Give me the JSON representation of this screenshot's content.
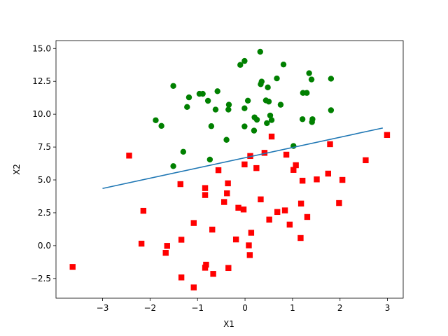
{
  "chart_data": {
    "type": "scatter",
    "title": "",
    "xlabel": "X1",
    "ylabel": "X2",
    "xlim": [
      -3.98,
      3.33
    ],
    "ylim": [
      -4.0,
      15.6
    ],
    "xticks": [
      -3,
      -2,
      -1,
      0,
      1,
      2,
      3
    ],
    "yticks": [
      -2.5,
      0.0,
      2.5,
      5.0,
      7.5,
      10.0,
      12.5,
      15.0
    ],
    "xtick_labels": [
      "−3",
      "−2",
      "−1",
      "0",
      "1",
      "2",
      "3"
    ],
    "ytick_labels": [
      "−2.5",
      "0.0",
      "2.5",
      "5.0",
      "7.5",
      "10.0",
      "12.5",
      "15.0"
    ],
    "grid": false,
    "series": [
      {
        "kind": "scatter",
        "marker": "circle",
        "color": "#008000",
        "points": [
          [
            -1.51,
            12.15
          ],
          [
            -0.96,
            11.55
          ],
          [
            -0.89,
            11.55
          ],
          [
            -0.58,
            11.75
          ],
          [
            -1.18,
            11.28
          ],
          [
            -0.78,
            11.02
          ],
          [
            -1.22,
            10.55
          ],
          [
            -0.34,
            10.72
          ],
          [
            -0.35,
            10.35
          ],
          [
            -0.62,
            10.35
          ],
          [
            -1.88,
            9.54
          ],
          [
            -1.76,
            9.11
          ],
          [
            -0.71,
            9.09
          ],
          [
            -0.39,
            8.05
          ],
          [
            -1.3,
            7.14
          ],
          [
            -0.74,
            6.55
          ],
          [
            -1.51,
            6.05
          ],
          [
            -0.1,
            13.75
          ],
          [
            -0.01,
            14.05
          ],
          [
            0.32,
            14.75
          ],
          [
            0.81,
            13.78
          ],
          [
            0.33,
            12.28
          ],
          [
            0.35,
            12.48
          ],
          [
            0.67,
            12.72
          ],
          [
            0.48,
            12.04
          ],
          [
            0.44,
            11.05
          ],
          [
            0.5,
            10.96
          ],
          [
            0.06,
            11.03
          ],
          [
            0.75,
            10.72
          ],
          [
            -0.01,
            10.45
          ],
          [
            0.53,
            9.9
          ],
          [
            0.25,
            9.58
          ],
          [
            0.2,
            9.76
          ],
          [
            0.56,
            9.55
          ],
          [
            0.46,
            9.32
          ],
          [
            0.19,
            8.75
          ],
          [
            -0.01,
            9.07
          ],
          [
            1.02,
            7.58
          ],
          [
            1.35,
            13.12
          ],
          [
            1.4,
            12.64
          ],
          [
            1.81,
            12.7
          ],
          [
            1.22,
            11.62
          ],
          [
            1.3,
            11.62
          ],
          [
            1.21,
            9.62
          ],
          [
            1.41,
            9.4
          ],
          [
            1.42,
            9.62
          ],
          [
            1.81,
            10.3
          ]
        ]
      },
      {
        "kind": "scatter",
        "marker": "square",
        "color": "#ff0000",
        "points": [
          [
            -3.63,
            -1.62
          ],
          [
            -2.44,
            6.85
          ],
          [
            -2.14,
            2.65
          ],
          [
            -2.18,
            0.15
          ],
          [
            -1.64,
            -0.02
          ],
          [
            -1.67,
            -0.55
          ],
          [
            -1.36,
            4.68
          ],
          [
            -1.34,
            0.45
          ],
          [
            -1.34,
            -2.42
          ],
          [
            -1.08,
            1.72
          ],
          [
            -1.08,
            -3.18
          ],
          [
            -0.84,
            4.38
          ],
          [
            -0.84,
            3.85
          ],
          [
            -0.82,
            -1.45
          ],
          [
            -0.84,
            -1.68
          ],
          [
            -0.69,
            1.22
          ],
          [
            -0.67,
            -2.15
          ],
          [
            -0.56,
            5.74
          ],
          [
            -0.44,
            3.32
          ],
          [
            -0.38,
            3.98
          ],
          [
            -0.36,
            4.74
          ],
          [
            -0.35,
            -1.7
          ],
          [
            -0.19,
            0.47
          ],
          [
            -0.14,
            2.88
          ],
          [
            -0.03,
            2.75
          ],
          [
            -0.01,
            6.18
          ],
          [
            0.08,
            0.02
          ],
          [
            0.1,
            -0.72
          ],
          [
            0.11,
            6.82
          ],
          [
            0.13,
            0.98
          ],
          [
            0.24,
            5.9
          ],
          [
            0.33,
            3.52
          ],
          [
            0.41,
            7.06
          ],
          [
            0.51,
            1.98
          ],
          [
            0.56,
            8.3
          ],
          [
            0.68,
            2.56
          ],
          [
            0.84,
            2.68
          ],
          [
            0.87,
            6.92
          ],
          [
            0.94,
            1.6
          ],
          [
            1.02,
            5.76
          ],
          [
            1.07,
            6.12
          ],
          [
            1.17,
            0.58
          ],
          [
            1.18,
            3.2
          ],
          [
            1.21,
            4.94
          ],
          [
            1.31,
            2.18
          ],
          [
            1.51,
            5.04
          ],
          [
            1.75,
            5.48
          ],
          [
            1.79,
            7.72
          ],
          [
            1.98,
            3.24
          ],
          [
            2.05,
            5.0
          ],
          [
            2.54,
            6.5
          ],
          [
            2.99,
            8.42
          ]
        ]
      },
      {
        "kind": "line",
        "color": "#1f77b4",
        "x": [
          -3.0,
          2.9
        ],
        "y": [
          4.35,
          8.95
        ]
      }
    ]
  }
}
